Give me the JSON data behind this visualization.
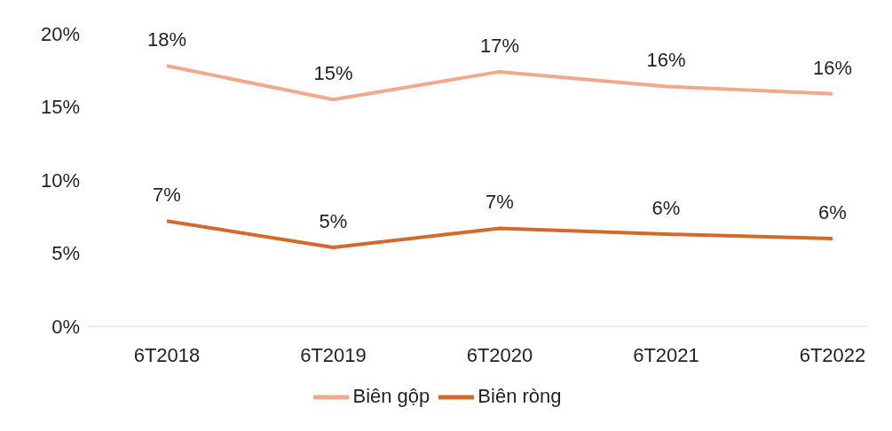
{
  "chart_data": {
    "type": "line",
    "categories": [
      "6T2018",
      "6T2019",
      "6T2020",
      "6T2021",
      "6T2022"
    ],
    "series": [
      {
        "name": "Biên gộp",
        "color": "#f2a98a",
        "values": [
          17.8,
          15.5,
          17.4,
          16.4,
          15.9
        ],
        "value_labels": [
          "18%",
          "15%",
          "17%",
          "16%",
          "16%"
        ]
      },
      {
        "name": "Biên ròng",
        "color": "#d4692a",
        "values": [
          7.2,
          5.4,
          6.7,
          6.3,
          6.0
        ],
        "value_labels": [
          "7%",
          "5%",
          "7%",
          "6%",
          "6%"
        ]
      }
    ],
    "ylim": [
      0,
      20
    ],
    "yticks": [
      {
        "value": 0,
        "label": "0%"
      },
      {
        "value": 5,
        "label": "5%"
      },
      {
        "value": 10,
        "label": "10%"
      },
      {
        "value": 15,
        "label": "15%"
      },
      {
        "value": 20,
        "label": "20%"
      }
    ],
    "grid": false,
    "legend": "bottom",
    "marker": "none",
    "line_style": "solid"
  }
}
